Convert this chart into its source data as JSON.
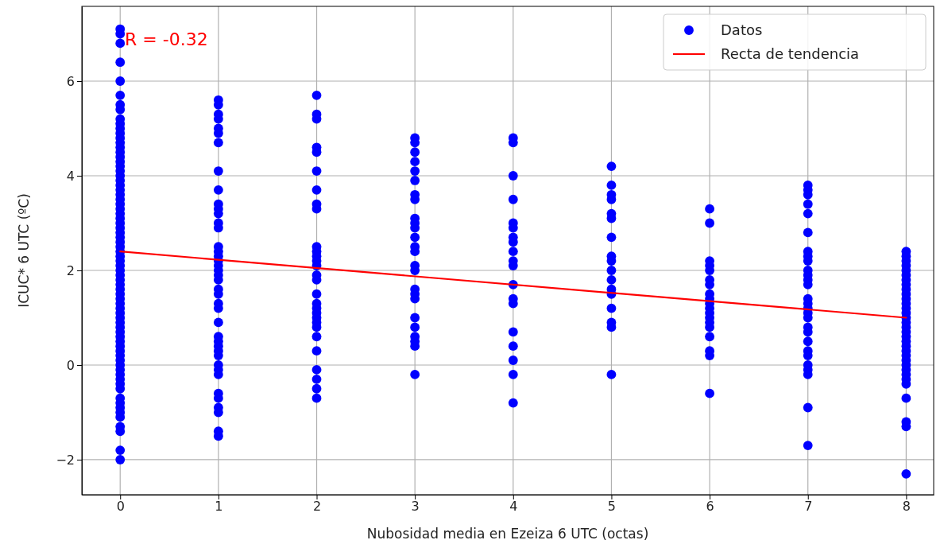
{
  "chart_data": {
    "type": "scatter",
    "xlabel": "Nubosidad media en Ezeiza 6 UTC (octas)",
    "ylabel": "ICUC* 6 UTC (ºC)",
    "annotations": [
      "R = -0.32"
    ],
    "xlim": [
      -0.39,
      8.28
    ],
    "ylim": [
      -2.74,
      7.58
    ],
    "xticks": [
      0,
      1,
      2,
      3,
      4,
      5,
      6,
      7,
      8
    ],
    "yticks": [
      {
        "value": -2,
        "label": "−2"
      },
      0,
      2,
      4,
      6
    ],
    "grid": true,
    "legend": "top right",
    "series": [
      {
        "name": "Datos",
        "color": "#0000ff",
        "marker": "circle",
        "x": [
          0,
          0,
          0,
          0,
          0,
          0,
          0,
          0,
          0,
          0,
          0,
          0,
          0,
          0,
          0,
          0,
          0,
          0,
          0,
          0,
          0,
          0,
          0,
          0,
          0,
          0,
          0,
          0,
          0,
          0,
          0,
          0,
          0,
          0,
          0,
          0,
          0,
          0,
          0,
          0,
          0,
          0,
          0,
          0,
          0,
          0,
          0,
          0,
          0,
          0,
          0,
          0,
          0,
          0,
          0,
          0,
          0,
          0,
          0,
          0,
          0,
          0,
          0,
          0,
          0,
          0,
          0,
          0,
          0,
          0,
          0,
          0,
          0,
          0,
          0,
          1,
          1,
          1,
          1,
          1,
          1,
          1,
          1,
          1,
          1,
          1,
          1,
          1,
          1,
          1,
          1,
          1,
          1,
          1,
          1,
          1,
          1,
          1,
          1,
          1,
          1,
          1,
          1,
          1,
          1,
          1,
          1,
          1,
          1,
          1,
          1,
          1,
          1,
          1,
          1,
          1,
          2,
          2,
          2,
          2,
          2,
          2,
          2,
          2,
          2,
          2,
          2,
          2,
          2,
          2,
          2,
          2,
          2,
          2,
          2,
          2,
          2,
          2,
          2,
          2,
          2,
          2,
          2,
          2,
          2,
          3,
          3,
          3,
          3,
          3,
          3,
          3,
          3,
          3,
          3,
          3,
          3,
          3,
          3,
          3,
          3,
          3,
          3,
          3,
          3,
          3,
          3,
          3,
          3,
          3,
          4,
          4,
          4,
          4,
          4,
          4,
          4,
          4,
          4,
          4,
          4,
          4,
          4,
          4,
          4,
          4,
          4,
          4,
          4,
          5,
          5,
          5,
          5,
          5,
          5,
          5,
          5,
          5,
          5,
          5,
          5,
          5,
          5,
          5,
          5,
          5,
          6,
          6,
          6,
          6,
          6,
          6,
          6,
          6,
          6,
          6,
          6,
          6,
          6,
          6,
          6,
          6,
          6,
          6,
          6,
          7,
          7,
          7,
          7,
          7,
          7,
          7,
          7,
          7,
          7,
          7,
          7,
          7,
          7,
          7,
          7,
          7,
          7,
          7,
          7,
          7,
          7,
          7,
          7,
          7,
          7,
          7,
          7,
          8,
          8,
          8,
          8,
          8,
          8,
          8,
          8,
          8,
          8,
          8,
          8,
          8,
          8,
          8,
          8,
          8,
          8,
          8,
          8,
          8,
          8,
          8,
          8,
          8,
          8,
          8,
          8,
          8,
          8,
          8,
          8,
          8
        ],
        "values": [
          7.1,
          7.0,
          6.8,
          6.4,
          6.0,
          5.7,
          5.5,
          5.4,
          5.2,
          5.1,
          5.0,
          4.9,
          4.8,
          4.7,
          4.6,
          4.5,
          4.4,
          4.3,
          4.2,
          4.1,
          4.0,
          3.9,
          3.8,
          3.7,
          3.6,
          3.5,
          3.4,
          3.3,
          3.2,
          3.1,
          3.0,
          2.9,
          2.8,
          2.7,
          2.6,
          2.5,
          2.4,
          2.3,
          2.2,
          2.1,
          2.0,
          1.9,
          1.8,
          1.7,
          1.6,
          1.5,
          1.4,
          1.3,
          1.2,
          1.1,
          1.0,
          0.9,
          0.8,
          0.7,
          0.6,
          0.5,
          0.4,
          0.3,
          0.2,
          0.1,
          0.0,
          -0.1,
          -0.2,
          -0.3,
          -0.4,
          -0.5,
          -0.7,
          -0.8,
          -0.9,
          -1.0,
          -1.1,
          -1.3,
          -1.4,
          -1.8,
          -2.0,
          5.6,
          5.5,
          5.3,
          5.2,
          5.0,
          4.9,
          4.7,
          4.1,
          3.7,
          3.4,
          3.3,
          3.2,
          3.0,
          2.9,
          2.5,
          2.4,
          2.3,
          2.2,
          2.1,
          2.0,
          1.9,
          1.8,
          1.6,
          1.5,
          1.3,
          1.2,
          0.9,
          0.6,
          0.5,
          0.4,
          0.3,
          0.2,
          0.0,
          -0.1,
          -0.2,
          -0.6,
          -0.7,
          -0.9,
          -1.0,
          -1.4,
          -1.5,
          5.7,
          5.3,
          5.2,
          4.6,
          4.5,
          4.1,
          3.7,
          3.4,
          3.3,
          2.5,
          2.4,
          2.3,
          2.2,
          2.1,
          1.9,
          1.8,
          1.5,
          1.3,
          1.2,
          1.1,
          1.0,
          0.9,
          0.8,
          0.6,
          0.3,
          -0.1,
          -0.3,
          -0.5,
          -0.7,
          4.8,
          4.7,
          4.5,
          4.3,
          4.1,
          3.9,
          3.6,
          3.5,
          3.1,
          3.0,
          2.9,
          2.7,
          2.5,
          2.4,
          2.1,
          2.0,
          1.6,
          1.5,
          1.4,
          1.0,
          0.8,
          0.6,
          0.5,
          0.4,
          -0.2,
          4.8,
          4.7,
          4.0,
          3.5,
          3.0,
          2.9,
          2.7,
          2.6,
          2.4,
          2.2,
          2.1,
          1.7,
          1.4,
          1.3,
          0.7,
          0.4,
          0.1,
          -0.2,
          -0.8,
          4.2,
          3.8,
          3.6,
          3.5,
          3.2,
          3.1,
          2.7,
          2.3,
          2.2,
          2.0,
          1.8,
          1.6,
          1.5,
          1.2,
          0.9,
          0.8,
          -0.2,
          3.3,
          3.0,
          2.2,
          2.1,
          2.0,
          1.8,
          1.7,
          1.5,
          1.4,
          1.3,
          1.2,
          1.1,
          1.0,
          0.9,
          0.8,
          0.6,
          0.3,
          0.2,
          -0.6,
          3.8,
          3.7,
          3.6,
          3.4,
          3.2,
          2.8,
          2.4,
          2.3,
          2.2,
          2.0,
          1.9,
          1.8,
          1.7,
          1.4,
          1.3,
          1.2,
          1.1,
          1.0,
          0.8,
          0.7,
          0.5,
          0.3,
          0.2,
          0.0,
          -0.1,
          -0.2,
          -0.9,
          -1.7,
          2.4,
          2.3,
          2.2,
          2.1,
          2.0,
          1.9,
          1.8,
          1.7,
          1.6,
          1.5,
          1.4,
          1.3,
          1.2,
          1.1,
          1.0,
          0.9,
          0.8,
          0.7,
          0.6,
          0.5,
          0.4,
          0.3,
          0.2,
          0.1,
          0.0,
          -0.1,
          -0.2,
          -0.3,
          -0.4,
          -0.7,
          -1.2,
          -1.3,
          -2.3
        ]
      },
      {
        "name": "Recta de tendencia",
        "type": "line",
        "marker": "none",
        "color": "#ff0000",
        "x": [
          0,
          8
        ],
        "values": [
          2.4,
          1.0
        ]
      }
    ]
  }
}
